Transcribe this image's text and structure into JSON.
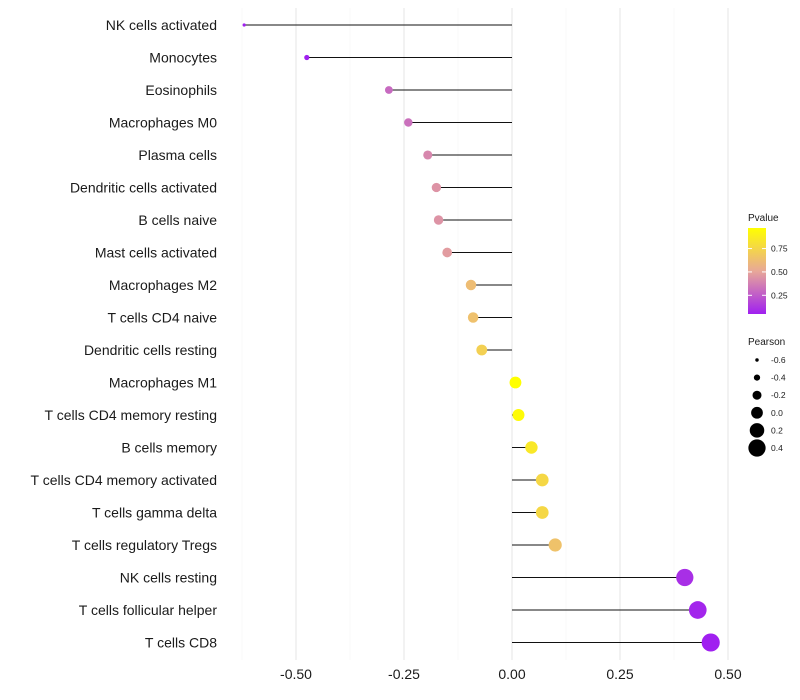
{
  "chart_data": {
    "type": "lollipop",
    "title": "",
    "xlabel": "",
    "ylabel": "",
    "xlim": [
      -0.63,
      0.5
    ],
    "x_ticks": [
      -0.5,
      -0.25,
      0.0,
      0.25,
      0.5
    ],
    "x_tick_labels": [
      "-0.50",
      "-0.25",
      "0.00",
      "0.25",
      "0.50"
    ],
    "grid": true,
    "baseline": 0.0,
    "points": [
      {
        "label": "NK cells activated",
        "pearson": -0.62,
        "pvalue": 0.05
      },
      {
        "label": "Monocytes",
        "pearson": -0.475,
        "pvalue": 0.05
      },
      {
        "label": "Eosinophils",
        "pearson": -0.285,
        "pvalue": 0.3
      },
      {
        "label": "Macrophages M0",
        "pearson": -0.24,
        "pvalue": 0.32
      },
      {
        "label": "Plasma cells",
        "pearson": -0.195,
        "pvalue": 0.4
      },
      {
        "label": "Dendritic cells activated",
        "pearson": -0.175,
        "pvalue": 0.44
      },
      {
        "label": "B cells naive",
        "pearson": -0.17,
        "pvalue": 0.44
      },
      {
        "label": "Mast cells activated",
        "pearson": -0.15,
        "pvalue": 0.47
      },
      {
        "label": "Macrophages M2",
        "pearson": -0.095,
        "pvalue": 0.62
      },
      {
        "label": "T cells CD4 naive",
        "pearson": -0.09,
        "pvalue": 0.64
      },
      {
        "label": "Dendritic cells resting",
        "pearson": -0.07,
        "pvalue": 0.72
      },
      {
        "label": "Macrophages M1",
        "pearson": 0.008,
        "pvalue": 0.97
      },
      {
        "label": "T cells CD4 memory resting",
        "pearson": 0.015,
        "pvalue": 0.95
      },
      {
        "label": "B cells memory",
        "pearson": 0.045,
        "pvalue": 0.85
      },
      {
        "label": "T cells CD4 memory activated",
        "pearson": 0.07,
        "pvalue": 0.76
      },
      {
        "label": "T cells gamma delta",
        "pearson": 0.07,
        "pvalue": 0.76
      },
      {
        "label": "T cells regulatory  Tregs ",
        "pearson": 0.1,
        "pvalue": 0.65
      },
      {
        "label": "NK cells resting",
        "pearson": 0.4,
        "pvalue": 0.1
      },
      {
        "label": "T cells follicular helper",
        "pearson": 0.43,
        "pvalue": 0.07
      },
      {
        "label": "T cells CD8",
        "pearson": 0.46,
        "pvalue": 0.05
      }
    ],
    "legend_color": {
      "title": "Pvalue",
      "ticks": [
        0.25,
        0.5,
        0.75
      ],
      "tick_labels": [
        "0.25",
        "0.50",
        "0.75"
      ],
      "range": [
        0.05,
        0.97
      ],
      "low_color": "#A020F0",
      "mid_color": "#E8A898",
      "high_color": "#FFFF00",
      "placement": "right"
    },
    "legend_size": {
      "title": "Pearson",
      "values": [
        -0.6,
        -0.4,
        -0.2,
        0.0,
        0.2,
        0.4
      ],
      "labels": [
        "-0.6",
        "-0.4",
        "-0.2",
        "0.0",
        "0.2",
        "0.4"
      ],
      "placement": "right"
    }
  }
}
